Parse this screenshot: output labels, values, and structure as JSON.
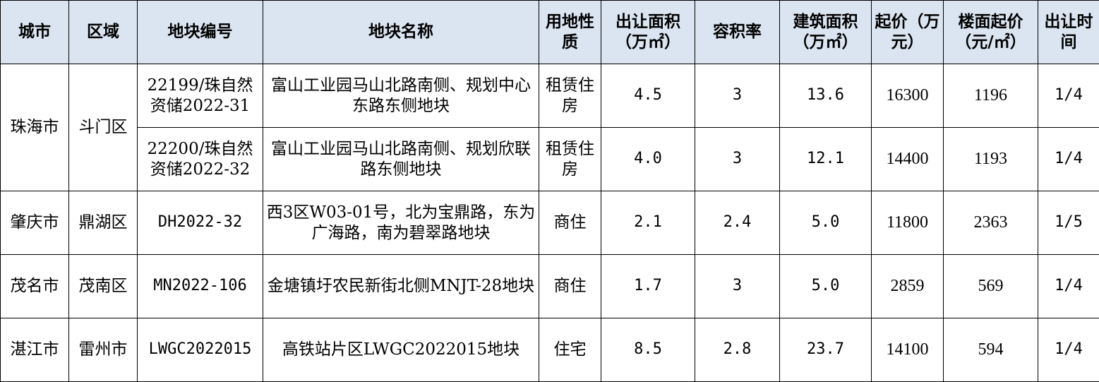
{
  "headers": {
    "city": "城市",
    "district": "区域",
    "plot_no": "地块编号",
    "plot_name": "地块名称",
    "land_use": "用地性质",
    "area": "出让面积（万㎡）",
    "plot_ratio": "容积率",
    "building_area": "建筑面积（万㎡）",
    "start_price": "起价（万元）",
    "floor_price": "楼面起价（元/㎡）",
    "date": "出让时间"
  },
  "groups": [
    {
      "city": "珠海市",
      "district": "斗门区"
    },
    {
      "city": "肇庆市",
      "district": "鼎湖区"
    },
    {
      "city": "茂名市",
      "district": "茂南区"
    },
    {
      "city": "湛江市",
      "district": "雷州市"
    }
  ],
  "rows": [
    {
      "plot_no": "22199/珠自然资储2022-31",
      "plot_name": "富山工业园马山北路南侧、规划中心东路东侧地块",
      "land_use": "租赁住房",
      "area": "4.5",
      "plot_ratio": "3",
      "building_area": "13.6",
      "start_price": "16300",
      "floor_price": "1196",
      "date": "1/4"
    },
    {
      "plot_no": "22200/珠自然资储2022-32",
      "plot_name": "富山工业园马山北路南侧、规划欣联路东侧地块",
      "land_use": "租赁住房",
      "area": "4.0",
      "plot_ratio": "3",
      "building_area": "12.1",
      "start_price": "14400",
      "floor_price": "1193",
      "date": "1/4"
    },
    {
      "plot_no": "DH2022-32",
      "plot_name": "西3区W03-01号，北为宝鼎路，东为广海路，南为碧翠路地块",
      "land_use": "商住",
      "area": "2.1",
      "plot_ratio": "2.4",
      "building_area": "5.0",
      "start_price": "11800",
      "floor_price": "2363",
      "date": "1/5"
    },
    {
      "plot_no": "MN2022-106",
      "plot_name": "金塘镇圩农民新街北侧MNJT-28地块",
      "land_use": "商住",
      "area": "1.7",
      "plot_ratio": "3",
      "building_area": "5.0",
      "start_price": "2859",
      "floor_price": "569",
      "date": "1/4"
    },
    {
      "plot_no": "LWGC2022015",
      "plot_name": "高铁站片区LWGC2022015地块",
      "land_use": "住宅",
      "area": "8.5",
      "plot_ratio": "2.8",
      "building_area": "23.7",
      "start_price": "14100",
      "floor_price": "594",
      "date": "1/4"
    }
  ]
}
